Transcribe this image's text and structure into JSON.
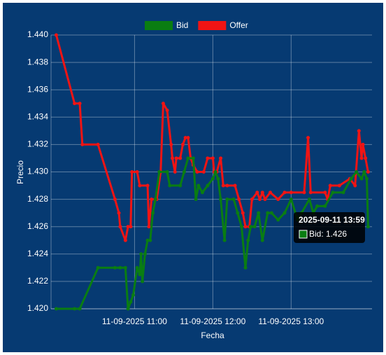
{
  "chart_data": {
    "type": "line",
    "x_label": "Fecha",
    "y_label": "Precio",
    "xlim": [
      "2025-09-11 09:56",
      "2025-09-11 14:02"
    ],
    "xticks": [
      {
        "value": "2025-09-11 11:00",
        "label": "11-09-2025 11:00"
      },
      {
        "value": "2025-09-11 12:00",
        "label": "11-09-2025 12:00"
      },
      {
        "value": "2025-09-11 13:00",
        "label": "11-09-2025 13:00"
      }
    ],
    "ylim": [
      1.42,
      1.44
    ],
    "yticks": [
      {
        "value": 1.42,
        "label": "1.420"
      },
      1.422,
      1.424,
      1.426,
      1.428,
      {
        "value": 1.43,
        "label": "1.430"
      },
      1.432,
      1.434,
      1.436,
      1.438,
      {
        "value": 1.44,
        "label": "1.440"
      }
    ],
    "grid": true,
    "legend": "top",
    "series": [
      {
        "name": "Bid",
        "color": "#0a7d12",
        "x": [
          "2025-09-11 10:00",
          "2025-09-11 10:14",
          "2025-09-11 10:18",
          "2025-09-11 10:32",
          "2025-09-11 10:45",
          "2025-09-11 10:49",
          "2025-09-11 10:53",
          "2025-09-11 10:55",
          "2025-09-11 10:57",
          "2025-09-11 10:59",
          "2025-09-11 11:02",
          "2025-09-11 11:04",
          "2025-09-11 11:05",
          "2025-09-11 11:06",
          "2025-09-11 11:08",
          "2025-09-11 11:10",
          "2025-09-11 11:12",
          "2025-09-11 11:14",
          "2025-09-11 11:16",
          "2025-09-11 11:19",
          "2025-09-11 11:25",
          "2025-09-11 11:27",
          "2025-09-11 11:35",
          "2025-09-11 11:38",
          "2025-09-11 11:41",
          "2025-09-11 11:45",
          "2025-09-11 11:47",
          "2025-09-11 11:49",
          "2025-09-11 11:52",
          "2025-09-11 11:56",
          "2025-09-11 12:00",
          "2025-09-11 12:02",
          "2025-09-11 12:04",
          "2025-09-11 12:06",
          "2025-09-11 12:09",
          "2025-09-11 12:11",
          "2025-09-11 12:16",
          "2025-09-11 12:19",
          "2025-09-11 12:22",
          "2025-09-11 12:25",
          "2025-09-11 12:27",
          "2025-09-11 12:29",
          "2025-09-11 12:32",
          "2025-09-11 12:35",
          "2025-09-11 12:38",
          "2025-09-11 12:42",
          "2025-09-11 12:45",
          "2025-09-11 12:50",
          "2025-09-11 12:55",
          "2025-09-11 13:00",
          "2025-09-11 13:05",
          "2025-09-11 13:08",
          "2025-09-11 13:14",
          "2025-09-11 13:17",
          "2025-09-11 13:20",
          "2025-09-11 13:26",
          "2025-09-11 13:32",
          "2025-09-11 13:40",
          "2025-09-11 13:46",
          "2025-09-11 13:50",
          "2025-09-11 13:54",
          "2025-09-11 13:56",
          "2025-09-11 13:58",
          "2025-09-11 13:59"
        ],
        "values": [
          1.42,
          1.42,
          1.42,
          1.423,
          1.423,
          1.423,
          1.423,
          1.42,
          1.4205,
          1.421,
          1.423,
          1.4225,
          1.424,
          1.422,
          1.424,
          1.425,
          1.425,
          1.427,
          1.428,
          1.43,
          1.43,
          1.429,
          1.429,
          1.43,
          1.431,
          1.431,
          1.428,
          1.429,
          1.4285,
          1.429,
          1.4295,
          1.43,
          1.4295,
          1.428,
          1.425,
          1.428,
          1.428,
          1.427,
          1.426,
          1.423,
          1.425,
          1.426,
          1.426,
          1.427,
          1.425,
          1.427,
          1.427,
          1.4265,
          1.427,
          1.428,
          1.4265,
          1.427,
          1.428,
          1.427,
          1.4275,
          1.4275,
          1.4285,
          1.4285,
          1.4295,
          1.43,
          1.4295,
          1.43,
          1.4295,
          1.426
        ]
      },
      {
        "name": "Offer",
        "color": "#f01414",
        "x": [
          "2025-09-11 10:00",
          "2025-09-11 10:14",
          "2025-09-11 10:18",
          "2025-09-11 10:20",
          "2025-09-11 10:32",
          "2025-09-11 10:45",
          "2025-09-11 10:48",
          "2025-09-11 10:49",
          "2025-09-11 10:53",
          "2025-09-11 10:55",
          "2025-09-11 10:57",
          "2025-09-11 10:58",
          "2025-09-11 11:02",
          "2025-09-11 11:04",
          "2025-09-11 11:10",
          "2025-09-11 11:11",
          "2025-09-11 11:13",
          "2025-09-11 11:17",
          "2025-09-11 11:20",
          "2025-09-11 11:22",
          "2025-09-11 11:25",
          "2025-09-11 11:28",
          "2025-09-11 11:29",
          "2025-09-11 11:31",
          "2025-09-11 11:32",
          "2025-09-11 11:35",
          "2025-09-11 11:37",
          "2025-09-11 11:39",
          "2025-09-11 11:41",
          "2025-09-11 11:43",
          "2025-09-11 11:45",
          "2025-09-11 11:48",
          "2025-09-11 11:53",
          "2025-09-11 11:56",
          "2025-09-11 12:00",
          "2025-09-11 12:01",
          "2025-09-11 12:03",
          "2025-09-11 12:06",
          "2025-09-11 12:08",
          "2025-09-11 12:11",
          "2025-09-11 12:17",
          "2025-09-11 12:20",
          "2025-09-11 12:23",
          "2025-09-11 12:25",
          "2025-09-11 12:28",
          "2025-09-11 12:30",
          "2025-09-11 12:34",
          "2025-09-11 12:36",
          "2025-09-11 12:38",
          "2025-09-11 12:40",
          "2025-09-11 12:44",
          "2025-09-11 12:50",
          "2025-09-11 12:55",
          "2025-09-11 13:00",
          "2025-09-11 13:10",
          "2025-09-11 13:13",
          "2025-09-11 13:15",
          "2025-09-11 13:26",
          "2025-09-11 13:28",
          "2025-09-11 13:30",
          "2025-09-11 13:37",
          "2025-09-11 13:45",
          "2025-09-11 13:49",
          "2025-09-11 13:52",
          "2025-09-11 13:54",
          "2025-09-11 13:55",
          "2025-09-11 13:57",
          "2025-09-11 13:59"
        ],
        "values": [
          1.44,
          1.435,
          1.435,
          1.432,
          1.432,
          1.428,
          1.427,
          1.426,
          1.425,
          1.426,
          1.426,
          1.43,
          1.43,
          1.429,
          1.429,
          1.426,
          1.428,
          1.428,
          1.43,
          1.435,
          1.4345,
          1.432,
          1.431,
          1.43,
          1.431,
          1.431,
          1.432,
          1.4325,
          1.4325,
          1.431,
          1.4305,
          1.43,
          1.43,
          1.431,
          1.431,
          1.43,
          1.43,
          1.431,
          1.429,
          1.429,
          1.429,
          1.428,
          1.427,
          1.426,
          1.426,
          1.428,
          1.4285,
          1.428,
          1.4285,
          1.428,
          1.4285,
          1.428,
          1.4285,
          1.4285,
          1.4285,
          1.4325,
          1.4285,
          1.4285,
          1.428,
          1.429,
          1.429,
          1.4295,
          1.429,
          1.433,
          1.431,
          1.432,
          1.431,
          1.43
        ]
      }
    ],
    "tooltip": {
      "title": "2025-09-11 13:59",
      "label": "Bid: 1.426"
    }
  }
}
